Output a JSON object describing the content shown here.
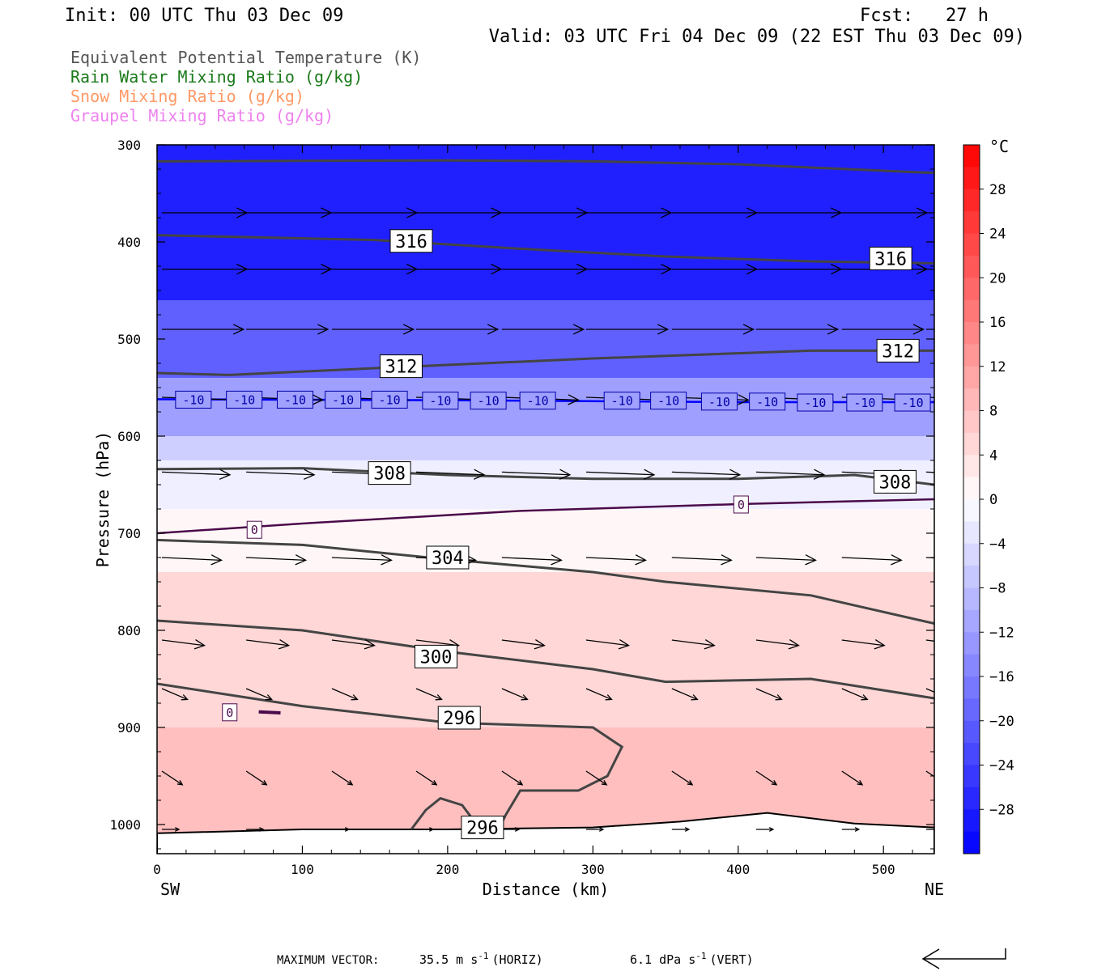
{
  "header": {
    "init": "Init: 00 UTC Thu 03 Dec 09",
    "fcst": "Fcst:   27 h",
    "valid": "Valid: 03 UTC Fri 04 Dec 09 (22 EST Thu 03 Dec 09)"
  },
  "fields": [
    {
      "label": "Equivalent Potential Temperature (K)",
      "color": "#555555"
    },
    {
      "label": "Rain Water Mixing Ratio (g/kg)",
      "color": "#1a7a1a"
    },
    {
      "label": "Snow Mixing Ratio (g/kg)",
      "color": "#ff9966"
    },
    {
      "label": "Graupel Mixing Ratio (g/kg)",
      "color": "#ee82ee"
    }
  ],
  "footer": {
    "max_vector_label": "MAXIMUM VECTOR:",
    "horiz": "35.5 m s",
    "horiz_unit": "(HORIZ)",
    "vert": "6.1 dPa s",
    "vert_unit": "(VERT)",
    "exp": "-1"
  },
  "chart_data": {
    "type": "heatmap",
    "xlabel": "Distance (km)",
    "ylabel": "Pressure (hPa)",
    "x_ticks": [
      0,
      100,
      200,
      300,
      400,
      500
    ],
    "y_ticks": [
      300,
      400,
      500,
      600,
      700,
      800,
      900,
      1000
    ],
    "xlim": [
      0,
      535
    ],
    "ylim": [
      1030,
      300
    ],
    "x_end_labels": {
      "left": "SW",
      "right": "NE"
    },
    "colorbar": {
      "unit": "°C",
      "ticks": [
        28,
        24,
        20,
        16,
        12,
        8,
        4,
        0,
        -4,
        -8,
        -12,
        -16,
        -20,
        -24,
        -28
      ],
      "range": [
        -32,
        32
      ]
    },
    "temperature_bands": [
      {
        "p_top": 300,
        "p_bot": 460,
        "t": -28
      },
      {
        "p_top": 460,
        "p_bot": 540,
        "t": -20
      },
      {
        "p_top": 540,
        "p_bot": 600,
        "t": -12
      },
      {
        "p_top": 600,
        "p_bot": 625,
        "t": -6
      },
      {
        "p_top": 625,
        "p_bot": 675,
        "t": -2
      },
      {
        "p_top": 675,
        "p_bot": 740,
        "t": 1
      },
      {
        "p_top": 740,
        "p_bot": 900,
        "t": 5
      },
      {
        "p_top": 900,
        "p_bot": 1030,
        "t": 8
      }
    ],
    "theta_e_contours": [
      {
        "value": 316,
        "points": [
          [
            0,
            317
          ],
          [
            200,
            316
          ],
          [
            300,
            317
          ],
          [
            400,
            320
          ],
          [
            535,
            329
          ]
        ]
      },
      {
        "value": 316,
        "points": [
          [
            0,
            393
          ],
          [
            150,
            398
          ],
          [
            250,
            407
          ],
          [
            350,
            415
          ],
          [
            450,
            420
          ],
          [
            535,
            422
          ]
        ]
      },
      {
        "value": 312,
        "points": [
          [
            0,
            535
          ],
          [
            50,
            537
          ],
          [
            150,
            530
          ],
          [
            300,
            520
          ],
          [
            450,
            512
          ],
          [
            535,
            512
          ]
        ]
      },
      {
        "value": 308,
        "points": [
          [
            0,
            634
          ],
          [
            100,
            633
          ],
          [
            200,
            640
          ],
          [
            300,
            644
          ],
          [
            400,
            644
          ],
          [
            480,
            640
          ],
          [
            535,
            650
          ]
        ]
      },
      {
        "value": 304,
        "points": [
          [
            0,
            707
          ],
          [
            100,
            712
          ],
          [
            200,
            727
          ],
          [
            300,
            740
          ],
          [
            350,
            750
          ],
          [
            450,
            764
          ],
          [
            535,
            793
          ]
        ]
      },
      {
        "value": 300,
        "points": [
          [
            0,
            790
          ],
          [
            100,
            800
          ],
          [
            200,
            822
          ],
          [
            300,
            840
          ],
          [
            350,
            853
          ],
          [
            450,
            850
          ],
          [
            535,
            870
          ]
        ]
      },
      {
        "value": 296,
        "points": [
          [
            0,
            855
          ],
          [
            100,
            878
          ],
          [
            200,
            895
          ],
          [
            300,
            900
          ],
          [
            320,
            920
          ],
          [
            310,
            950
          ],
          [
            290,
            965
          ],
          [
            250,
            965
          ],
          [
            240,
            990
          ],
          [
            235,
            1005
          ]
        ]
      },
      {
        "value": 296,
        "points": [
          [
            175,
            1005
          ],
          [
            185,
            985
          ],
          [
            195,
            973
          ],
          [
            210,
            980
          ],
          [
            220,
            1000
          ]
        ]
      }
    ],
    "isotherms": [
      {
        "value": 0,
        "points": [
          [
            0,
            700
          ],
          [
            100,
            690
          ],
          [
            250,
            677
          ],
          [
            400,
            670
          ],
          [
            535,
            665
          ]
        ]
      },
      {
        "value": -10,
        "points": [
          [
            0,
            562
          ],
          [
            200,
            563
          ],
          [
            400,
            565
          ],
          [
            535,
            565
          ]
        ]
      }
    ],
    "contour_labels": [
      {
        "text": "316",
        "x": 175,
        "p": 399
      },
      {
        "text": "316",
        "x": 505,
        "p": 417
      },
      {
        "text": "312",
        "x": 168,
        "p": 528
      },
      {
        "text": "312",
        "x": 510,
        "p": 512
      },
      {
        "text": "308",
        "x": 160,
        "p": 638
      },
      {
        "text": "308",
        "x": 508,
        "p": 647
      },
      {
        "text": "304",
        "x": 200,
        "p": 725
      },
      {
        "text": "300",
        "x": 192,
        "p": 827
      },
      {
        "text": "296",
        "x": 208,
        "p": 890
      },
      {
        "text": "296",
        "x": 224,
        "p": 1003
      }
    ],
    "isotherm_labels": [
      {
        "text": "0",
        "x": 67,
        "p": 696
      },
      {
        "text": "0",
        "x": 402,
        "p": 670
      },
      {
        "text": "0",
        "x": 50,
        "p": 884
      },
      {
        "text": "-10",
        "x": 25,
        "p": 562
      },
      {
        "text": "-10",
        "x": 60,
        "p": 562
      },
      {
        "text": "-10",
        "x": 95,
        "p": 562
      },
      {
        "text": "-10",
        "x": 128,
        "p": 562
      },
      {
        "text": "-10",
        "x": 160,
        "p": 562
      },
      {
        "text": "-10",
        "x": 195,
        "p": 563
      },
      {
        "text": "-10",
        "x": 228,
        "p": 563
      },
      {
        "text": "-10",
        "x": 262,
        "p": 563
      },
      {
        "text": "-10",
        "x": 320,
        "p": 563
      },
      {
        "text": "-10",
        "x": 352,
        "p": 563
      },
      {
        "text": "-10",
        "x": 387,
        "p": 564
      },
      {
        "text": "-10",
        "x": 420,
        "p": 564
      },
      {
        "text": "-10",
        "x": 453,
        "p": 565
      },
      {
        "text": "-10",
        "x": 487,
        "p": 565
      },
      {
        "text": "-10",
        "x": 520,
        "p": 565
      }
    ],
    "wind_vectors": {
      "x": [
        0,
        58,
        117,
        175,
        234,
        292,
        351,
        409,
        468,
        526
      ],
      "rows": [
        {
          "p": 370,
          "u": 50,
          "w": 0
        },
        {
          "p": 428,
          "u": 50,
          "w": 0
        },
        {
          "p": 490,
          "u": 48,
          "w": 0
        },
        {
          "p": 560,
          "u": 45,
          "w": -1
        },
        {
          "p": 637,
          "u": 40,
          "w": -1
        },
        {
          "p": 725,
          "u": 35,
          "w": -1
        },
        {
          "p": 810,
          "u": 25,
          "w": -2
        },
        {
          "p": 860,
          "u": 15,
          "w": -4
        },
        {
          "p": 945,
          "u": 12,
          "w": -5
        },
        {
          "p": 1005,
          "u": 10,
          "w": 0
        }
      ]
    }
  }
}
